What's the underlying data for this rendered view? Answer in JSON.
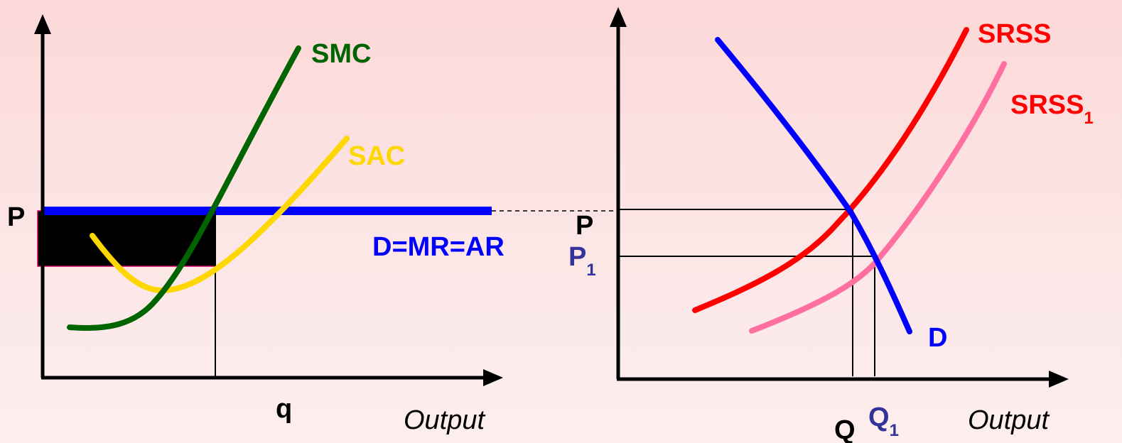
{
  "colors": {
    "axis": "#000000",
    "demand": "#0000ff",
    "smc": "#006400",
    "sac": "#ffd700",
    "srss": "#ff0000",
    "srss1": "#ff6fa0",
    "label_blue": "#333399",
    "profit_box": "#000000"
  },
  "firm_panel": {
    "curve_labels": {
      "smc": "SMC",
      "sac": "SAC",
      "demand": "D=MR=AR"
    },
    "price_label": "P",
    "quantity_label": "q",
    "x_axis_title": "Output"
  },
  "market_panel": {
    "curve_labels": {
      "supply": "SRSS",
      "supply_new_base": "SRSS",
      "supply_new_sub": "1",
      "demand": "D"
    },
    "price_label": "P",
    "price_new_base": "P",
    "price_new_sub": "1",
    "quantity_label": "Q",
    "quantity_new_base": "Q",
    "quantity_new_sub": "1",
    "x_axis_title": "Output"
  }
}
